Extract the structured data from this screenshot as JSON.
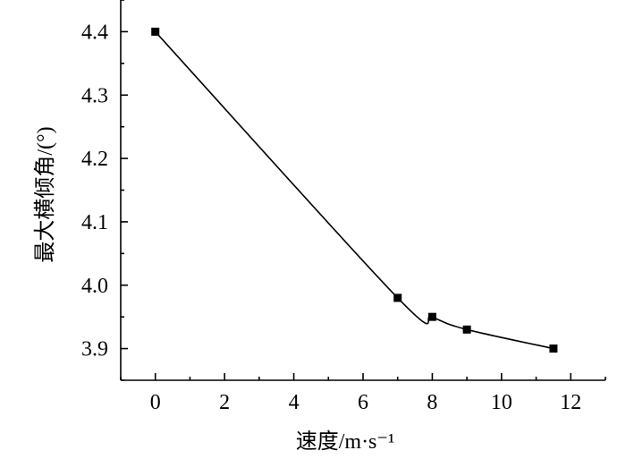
{
  "chart_data": {
    "type": "line",
    "title": "",
    "xlabel": "速度/m·s⁻¹",
    "ylabel": "最大横倾角/(°)",
    "xlim": [
      -1,
      13
    ],
    "ylim": [
      3.85,
      4.45
    ],
    "x_ticks": [
      0,
      2,
      4,
      6,
      8,
      10,
      12
    ],
    "x_tick_labels": [
      "0",
      "2",
      "4",
      "6",
      "8",
      "10",
      "12"
    ],
    "y_ticks": [
      3.9,
      4.0,
      4.1,
      4.2,
      4.3,
      4.4
    ],
    "y_tick_labels": [
      "3.9",
      "4.0",
      "4.1",
      "4.2",
      "4.3",
      "4.4"
    ],
    "grid": false,
    "series": [
      {
        "marker": "square",
        "smooth": true,
        "color": "#000000",
        "x": [
          0,
          7,
          8,
          9,
          11.5
        ],
        "y": [
          4.4,
          3.98,
          3.95,
          3.93,
          3.9
        ]
      }
    ]
  }
}
